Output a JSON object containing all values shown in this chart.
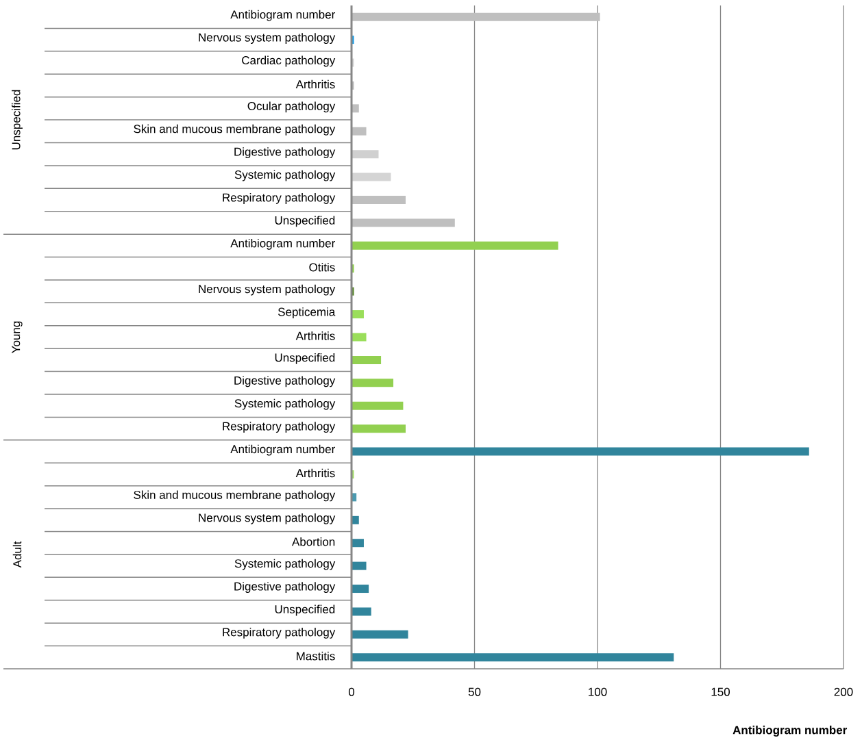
{
  "chart_data": {
    "type": "bar",
    "orientation": "horizontal",
    "xlabel": "Antibiogram number",
    "categories": [
      "Antibiogram number",
      "Nervous system pathology",
      "Cardiac pathology",
      "Arthritis",
      "Ocular pathology",
      "Skin and  mucous membrane  pathology",
      "Digestive pathology",
      "Systemic pathology",
      "Respiratory pathology",
      "Unspecified",
      "Antibiogram number",
      "Otitis",
      "Nervous system pathology",
      "Septicemia",
      "Arthritis",
      "Unspecified",
      "Digestive pathology",
      "Systemic pathology",
      "Respiratory pathology",
      "Antibiogram number",
      "Arthritis",
      "Skin and  mucous membrane  pathology",
      "Nervous system pathology",
      "Abortion",
      "Systemic pathology",
      "Digestive pathology",
      "Unspecified",
      "Respiratory pathology",
      "Mastitis"
    ],
    "values": [
      101,
      1,
      1,
      1,
      3,
      6,
      11,
      16,
      22,
      42,
      84,
      1,
      1,
      5,
      6,
      12,
      17,
      21,
      22,
      186,
      1,
      2,
      3,
      5,
      6,
      7,
      8,
      23,
      131
    ],
    "colors": [
      "#bfbfbf",
      "#1e9ee6",
      "#d6d6d6",
      "#bfbfbf",
      "#bfbfbf",
      "#bfbfbf",
      "#d0d0d0",
      "#d4d4d4",
      "#bfbfbf",
      "#bfbfbf",
      "#92d050",
      "#92d050",
      "#5e8a32",
      "#9ade5a",
      "#9ade5a",
      "#92d050",
      "#92d050",
      "#92d050",
      "#92d050",
      "#31859c",
      "#a9e070",
      "#4b9ab0",
      "#31859c",
      "#31859c",
      "#31859c",
      "#31859c",
      "#31859c",
      "#31859c",
      "#31859c"
    ],
    "annotations": [
      "Unspecified",
      "Young",
      "Adult"
    ],
    "xlim": [
      0,
      200
    ],
    "xticks": [
      0,
      50,
      100,
      150,
      200
    ],
    "grid": "x"
  }
}
